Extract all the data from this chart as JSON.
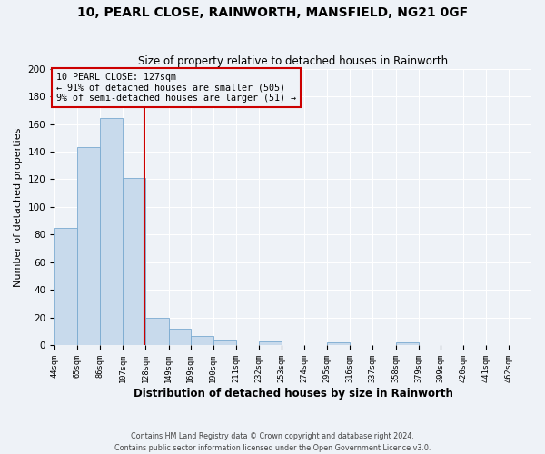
{
  "title": "10, PEARL CLOSE, RAINWORTH, MANSFIELD, NG21 0GF",
  "subtitle": "Size of property relative to detached houses in Rainworth",
  "xlabel": "Distribution of detached houses by size in Rainworth",
  "ylabel": "Number of detached properties",
  "bar_color": "#c8daec",
  "bar_edge_color": "#7aaad0",
  "bin_labels": [
    "44sqm",
    "65sqm",
    "86sqm",
    "107sqm",
    "128sqm",
    "149sqm",
    "169sqm",
    "190sqm",
    "211sqm",
    "232sqm",
    "253sqm",
    "274sqm",
    "295sqm",
    "316sqm",
    "337sqm",
    "358sqm",
    "379sqm",
    "399sqm",
    "420sqm",
    "441sqm",
    "462sqm"
  ],
  "bar_heights": [
    85,
    143,
    164,
    121,
    20,
    12,
    7,
    4,
    0,
    3,
    0,
    0,
    2,
    0,
    0,
    2,
    0,
    0,
    0,
    0,
    0
  ],
  "bin_edges": [
    44,
    65,
    86,
    107,
    128,
    149,
    169,
    190,
    211,
    232,
    253,
    274,
    295,
    316,
    337,
    358,
    379,
    399,
    420,
    441,
    462,
    483
  ],
  "vline_x": 127,
  "vline_color": "#cc0000",
  "annotation_line1": "10 PEARL CLOSE: 127sqm",
  "annotation_line2": "← 91% of detached houses are smaller (505)",
  "annotation_line3": "9% of semi-detached houses are larger (51) →",
  "annotation_box_color": "#cc0000",
  "ylim": [
    0,
    200
  ],
  "yticks": [
    0,
    20,
    40,
    60,
    80,
    100,
    120,
    140,
    160,
    180,
    200
  ],
  "footer_text": "Contains HM Land Registry data © Crown copyright and database right 2024.\nContains public sector information licensed under the Open Government Licence v3.0.",
  "background_color": "#eef2f7",
  "grid_color": "#ffffff"
}
